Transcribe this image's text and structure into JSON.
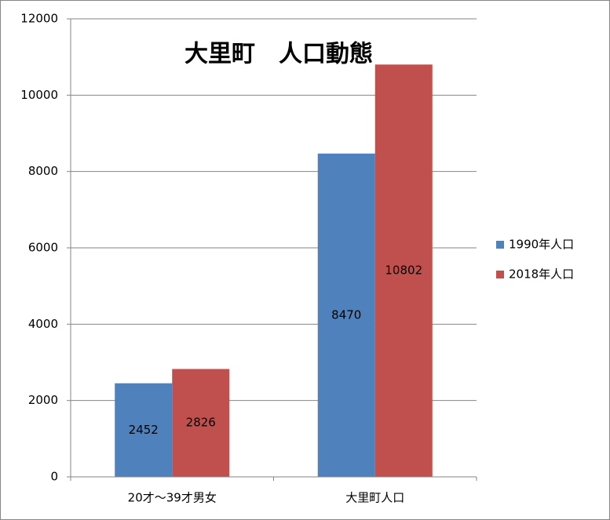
{
  "chart_data": {
    "type": "bar",
    "title": "大里町　人口動態",
    "categories": [
      "20才～39才男女",
      "大里町人口"
    ],
    "series": [
      {
        "name": "1990年人口",
        "color": "#4f81bd",
        "values": [
          2452,
          8470
        ]
      },
      {
        "name": "2018年人口",
        "color": "#c0504d",
        "values": [
          2826,
          10802
        ]
      }
    ],
    "ylim": [
      0,
      12000
    ],
    "yticks": [
      0,
      2000,
      4000,
      6000,
      8000,
      10000,
      12000
    ],
    "grid": true,
    "legend": "right",
    "data_labels": true
  }
}
